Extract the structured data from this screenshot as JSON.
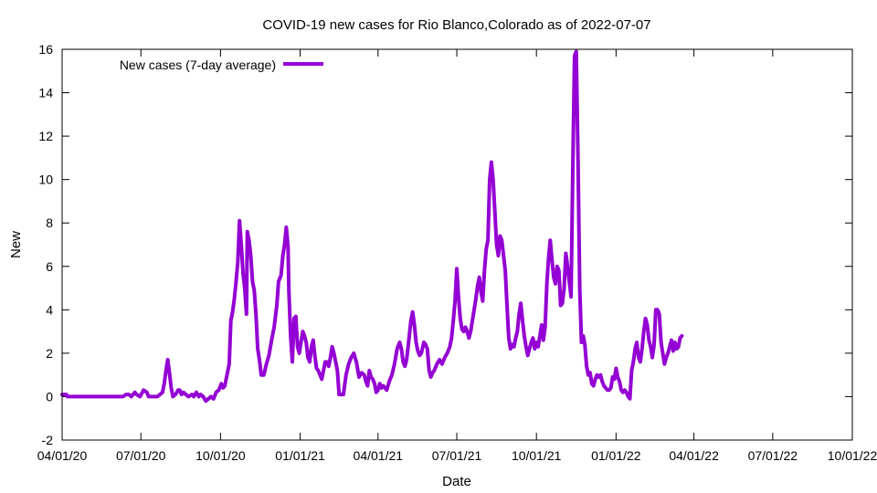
{
  "chart_data": {
    "type": "line",
    "title": "COVID-19 new cases for Rio Blanco,Colorado as of 2022-07-07",
    "xlabel": "Date",
    "ylabel": "New",
    "ylim": [
      -2,
      16
    ],
    "yticks": [
      -2,
      0,
      2,
      4,
      6,
      8,
      10,
      12,
      14,
      16
    ],
    "xlim_days": [
      0,
      913
    ],
    "xticks": [
      {
        "day": 0,
        "label": "04/01/20"
      },
      {
        "day": 91,
        "label": "07/01/20"
      },
      {
        "day": 183,
        "label": "10/01/20"
      },
      {
        "day": 275,
        "label": "01/01/21"
      },
      {
        "day": 365,
        "label": "04/01/21"
      },
      {
        "day": 456,
        "label": "07/01/21"
      },
      {
        "day": 548,
        "label": "10/01/21"
      },
      {
        "day": 640,
        "label": "01/01/22"
      },
      {
        "day": 730,
        "label": "04/01/22"
      },
      {
        "day": 821,
        "label": "07/01/22"
      },
      {
        "day": 913,
        "label": "10/01/22"
      }
    ],
    "legend_position": "top-left",
    "series": [
      {
        "name": "New cases (7-day average)",
        "color": "#9400d3",
        "points": [
          [
            0,
            0.1
          ],
          [
            5,
            0.1
          ],
          [
            6,
            0.0
          ],
          [
            40,
            0.0
          ],
          [
            70,
            0.0
          ],
          [
            74,
            0.1
          ],
          [
            77,
            0.1
          ],
          [
            80,
            0.0
          ],
          [
            84,
            0.2
          ],
          [
            86,
            0.1
          ],
          [
            90,
            0.0
          ],
          [
            94,
            0.3
          ],
          [
            98,
            0.2
          ],
          [
            100,
            0.0
          ],
          [
            110,
            0.0
          ],
          [
            113,
            0.1
          ],
          [
            116,
            0.2
          ],
          [
            118,
            0.6
          ],
          [
            120,
            1.2
          ],
          [
            122,
            1.7
          ],
          [
            124,
            1.1
          ],
          [
            126,
            0.4
          ],
          [
            128,
            0.0
          ],
          [
            131,
            0.1
          ],
          [
            134,
            0.3
          ],
          [
            136,
            0.3
          ],
          [
            138,
            0.1
          ],
          [
            140,
            0.2
          ],
          [
            143,
            0.1
          ],
          [
            146,
            0.0
          ],
          [
            150,
            0.1
          ],
          [
            152,
            0.0
          ],
          [
            155,
            0.2
          ],
          [
            158,
            0.0
          ],
          [
            160,
            0.1
          ],
          [
            163,
            0.0
          ],
          [
            166,
            -0.2
          ],
          [
            169,
            -0.1
          ],
          [
            172,
            0.0
          ],
          [
            175,
            -0.1
          ],
          [
            178,
            0.2
          ],
          [
            181,
            0.3
          ],
          [
            184,
            0.6
          ],
          [
            186,
            0.4
          ],
          [
            188,
            0.5
          ],
          [
            190,
            0.9
          ],
          [
            193,
            1.5
          ],
          [
            195,
            3.5
          ],
          [
            197,
            3.9
          ],
          [
            199,
            4.5
          ],
          [
            201,
            5.3
          ],
          [
            203,
            6.2
          ],
          [
            205,
            8.1
          ],
          [
            207,
            7.0
          ],
          [
            209,
            5.7
          ],
          [
            211,
            5.0
          ],
          [
            213,
            3.8
          ],
          [
            214,
            7.6
          ],
          [
            216,
            7.2
          ],
          [
            218,
            6.5
          ],
          [
            220,
            5.3
          ],
          [
            222,
            4.9
          ],
          [
            224,
            3.8
          ],
          [
            226,
            2.2
          ],
          [
            228,
            1.7
          ],
          [
            230,
            1.0
          ],
          [
            233,
            1.0
          ],
          [
            236,
            1.5
          ],
          [
            239,
            1.9
          ],
          [
            242,
            2.6
          ],
          [
            245,
            3.2
          ],
          [
            248,
            4.2
          ],
          [
            250,
            5.3
          ],
          [
            253,
            5.6
          ],
          [
            255,
            6.5
          ],
          [
            257,
            7.0
          ],
          [
            259,
            7.8
          ],
          [
            261,
            6.9
          ],
          [
            262,
            4.9
          ],
          [
            264,
            2.8
          ],
          [
            266,
            1.6
          ],
          [
            268,
            3.6
          ],
          [
            270,
            3.7
          ],
          [
            272,
            2.3
          ],
          [
            274,
            2.0
          ],
          [
            276,
            2.5
          ],
          [
            278,
            3.0
          ],
          [
            280,
            2.8
          ],
          [
            282,
            2.5
          ],
          [
            284,
            1.8
          ],
          [
            286,
            1.6
          ],
          [
            288,
            2.3
          ],
          [
            290,
            2.6
          ],
          [
            292,
            1.9
          ],
          [
            294,
            1.3
          ],
          [
            296,
            1.2
          ],
          [
            298,
            1.0
          ],
          [
            300,
            0.8
          ],
          [
            302,
            1.2
          ],
          [
            304,
            1.6
          ],
          [
            306,
            1.6
          ],
          [
            308,
            1.4
          ],
          [
            310,
            1.8
          ],
          [
            312,
            2.3
          ],
          [
            314,
            2.0
          ],
          [
            316,
            1.6
          ],
          [
            318,
            1.2
          ],
          [
            320,
            0.1
          ],
          [
            322,
            0.1
          ],
          [
            325,
            0.1
          ],
          [
            328,
            1.0
          ],
          [
            331,
            1.5
          ],
          [
            334,
            1.8
          ],
          [
            337,
            2.0
          ],
          [
            340,
            1.6
          ],
          [
            343,
            0.9
          ],
          [
            346,
            1.1
          ],
          [
            349,
            1.0
          ],
          [
            351,
            0.7
          ],
          [
            353,
            0.5
          ],
          [
            355,
            1.2
          ],
          [
            357,
            0.9
          ],
          [
            359,
            0.8
          ],
          [
            361,
            0.6
          ],
          [
            363,
            0.2
          ],
          [
            365,
            0.3
          ],
          [
            367,
            0.6
          ],
          [
            369,
            0.4
          ],
          [
            371,
            0.5
          ],
          [
            373,
            0.4
          ],
          [
            375,
            0.3
          ],
          [
            378,
            0.7
          ],
          [
            381,
            1.0
          ],
          [
            384,
            1.5
          ],
          [
            387,
            2.2
          ],
          [
            390,
            2.5
          ],
          [
            392,
            2.2
          ],
          [
            394,
            1.6
          ],
          [
            396,
            1.4
          ],
          [
            398,
            1.7
          ],
          [
            400,
            2.4
          ],
          [
            403,
            3.5
          ],
          [
            405,
            3.9
          ],
          [
            407,
            3.3
          ],
          [
            409,
            2.5
          ],
          [
            411,
            2.1
          ],
          [
            413,
            1.9
          ],
          [
            415,
            2.0
          ],
          [
            418,
            2.5
          ],
          [
            420,
            2.4
          ],
          [
            422,
            2.2
          ],
          [
            424,
            1.2
          ],
          [
            426,
            0.9
          ],
          [
            428,
            1.1
          ],
          [
            430,
            1.2
          ],
          [
            433,
            1.5
          ],
          [
            436,
            1.7
          ],
          [
            439,
            1.5
          ],
          [
            442,
            1.8
          ],
          [
            445,
            2.0
          ],
          [
            448,
            2.3
          ],
          [
            450,
            2.7
          ],
          [
            452,
            3.5
          ],
          [
            454,
            4.4
          ],
          [
            456,
            5.9
          ],
          [
            458,
            4.6
          ],
          [
            460,
            3.6
          ],
          [
            462,
            3.1
          ],
          [
            464,
            3.0
          ],
          [
            466,
            3.2
          ],
          [
            468,
            3.0
          ],
          [
            470,
            2.7
          ],
          [
            472,
            3.0
          ],
          [
            474,
            3.5
          ],
          [
            476,
            4.0
          ],
          [
            478,
            4.5
          ],
          [
            480,
            5.1
          ],
          [
            482,
            5.5
          ],
          [
            484,
            4.8
          ],
          [
            486,
            4.4
          ],
          [
            488,
            5.8
          ],
          [
            490,
            6.8
          ],
          [
            492,
            7.2
          ],
          [
            494,
            10.0
          ],
          [
            496,
            10.8
          ],
          [
            498,
            10.0
          ],
          [
            500,
            8.5
          ],
          [
            502,
            7.0
          ],
          [
            504,
            6.5
          ],
          [
            506,
            7.4
          ],
          [
            508,
            7.2
          ],
          [
            510,
            6.5
          ],
          [
            512,
            5.8
          ],
          [
            514,
            4.2
          ],
          [
            516,
            2.7
          ],
          [
            518,
            2.2
          ],
          [
            520,
            2.4
          ],
          [
            522,
            2.3
          ],
          [
            524,
            2.7
          ],
          [
            526,
            3.0
          ],
          [
            528,
            3.8
          ],
          [
            530,
            4.3
          ],
          [
            532,
            3.5
          ],
          [
            534,
            2.8
          ],
          [
            536,
            2.3
          ],
          [
            538,
            1.9
          ],
          [
            540,
            2.2
          ],
          [
            542,
            2.5
          ],
          [
            544,
            2.7
          ],
          [
            546,
            2.2
          ],
          [
            548,
            2.5
          ],
          [
            550,
            2.3
          ],
          [
            552,
            2.8
          ],
          [
            554,
            3.3
          ],
          [
            556,
            2.6
          ],
          [
            558,
            3.2
          ],
          [
            560,
            5.2
          ],
          [
            562,
            6.4
          ],
          [
            564,
            7.2
          ],
          [
            566,
            6.3
          ],
          [
            568,
            5.5
          ],
          [
            570,
            5.2
          ],
          [
            572,
            6.0
          ],
          [
            574,
            5.8
          ],
          [
            576,
            4.2
          ],
          [
            578,
            4.3
          ],
          [
            580,
            5.0
          ],
          [
            582,
            6.6
          ],
          [
            584,
            6.0
          ],
          [
            586,
            5.3
          ],
          [
            588,
            4.6
          ],
          [
            590,
            10.5
          ],
          [
            592,
            15.7
          ],
          [
            594,
            15.9
          ],
          [
            596,
            11.0
          ],
          [
            598,
            5.0
          ],
          [
            600,
            2.5
          ],
          [
            602,
            2.8
          ],
          [
            604,
            2.4
          ],
          [
            606,
            1.4
          ],
          [
            608,
            1.0
          ],
          [
            610,
            1.1
          ],
          [
            612,
            0.6
          ],
          [
            614,
            0.5
          ],
          [
            616,
            0.8
          ],
          [
            618,
            1.0
          ],
          [
            620,
            0.9
          ],
          [
            622,
            1.0
          ],
          [
            624,
            0.7
          ],
          [
            626,
            0.5
          ],
          [
            628,
            0.4
          ],
          [
            630,
            0.3
          ],
          [
            632,
            0.3
          ],
          [
            634,
            0.4
          ],
          [
            636,
            0.9
          ],
          [
            638,
            0.8
          ],
          [
            640,
            1.3
          ],
          [
            642,
            0.9
          ],
          [
            644,
            0.7
          ],
          [
            646,
            0.3
          ],
          [
            648,
            0.2
          ],
          [
            650,
            0.3
          ],
          [
            652,
            0.2
          ],
          [
            654,
            0.0
          ],
          [
            656,
            -0.1
          ],
          [
            658,
            1.2
          ],
          [
            660,
            1.6
          ],
          [
            662,
            2.2
          ],
          [
            664,
            2.5
          ],
          [
            666,
            1.8
          ],
          [
            668,
            1.6
          ],
          [
            670,
            2.2
          ],
          [
            672,
            3.0
          ],
          [
            674,
            3.6
          ],
          [
            676,
            3.3
          ],
          [
            678,
            2.6
          ],
          [
            680,
            2.3
          ],
          [
            682,
            1.8
          ],
          [
            684,
            2.4
          ],
          [
            686,
            4.0
          ],
          [
            688,
            4.0
          ],
          [
            690,
            3.8
          ],
          [
            692,
            2.5
          ],
          [
            694,
            2.0
          ],
          [
            696,
            1.5
          ],
          [
            698,
            1.8
          ],
          [
            700,
            2.0
          ],
          [
            702,
            2.3
          ],
          [
            704,
            2.6
          ],
          [
            706,
            2.1
          ],
          [
            708,
            2.5
          ],
          [
            710,
            2.2
          ],
          [
            712,
            2.3
          ],
          [
            714,
            2.7
          ],
          [
            716,
            2.8
          ]
        ]
      }
    ]
  }
}
